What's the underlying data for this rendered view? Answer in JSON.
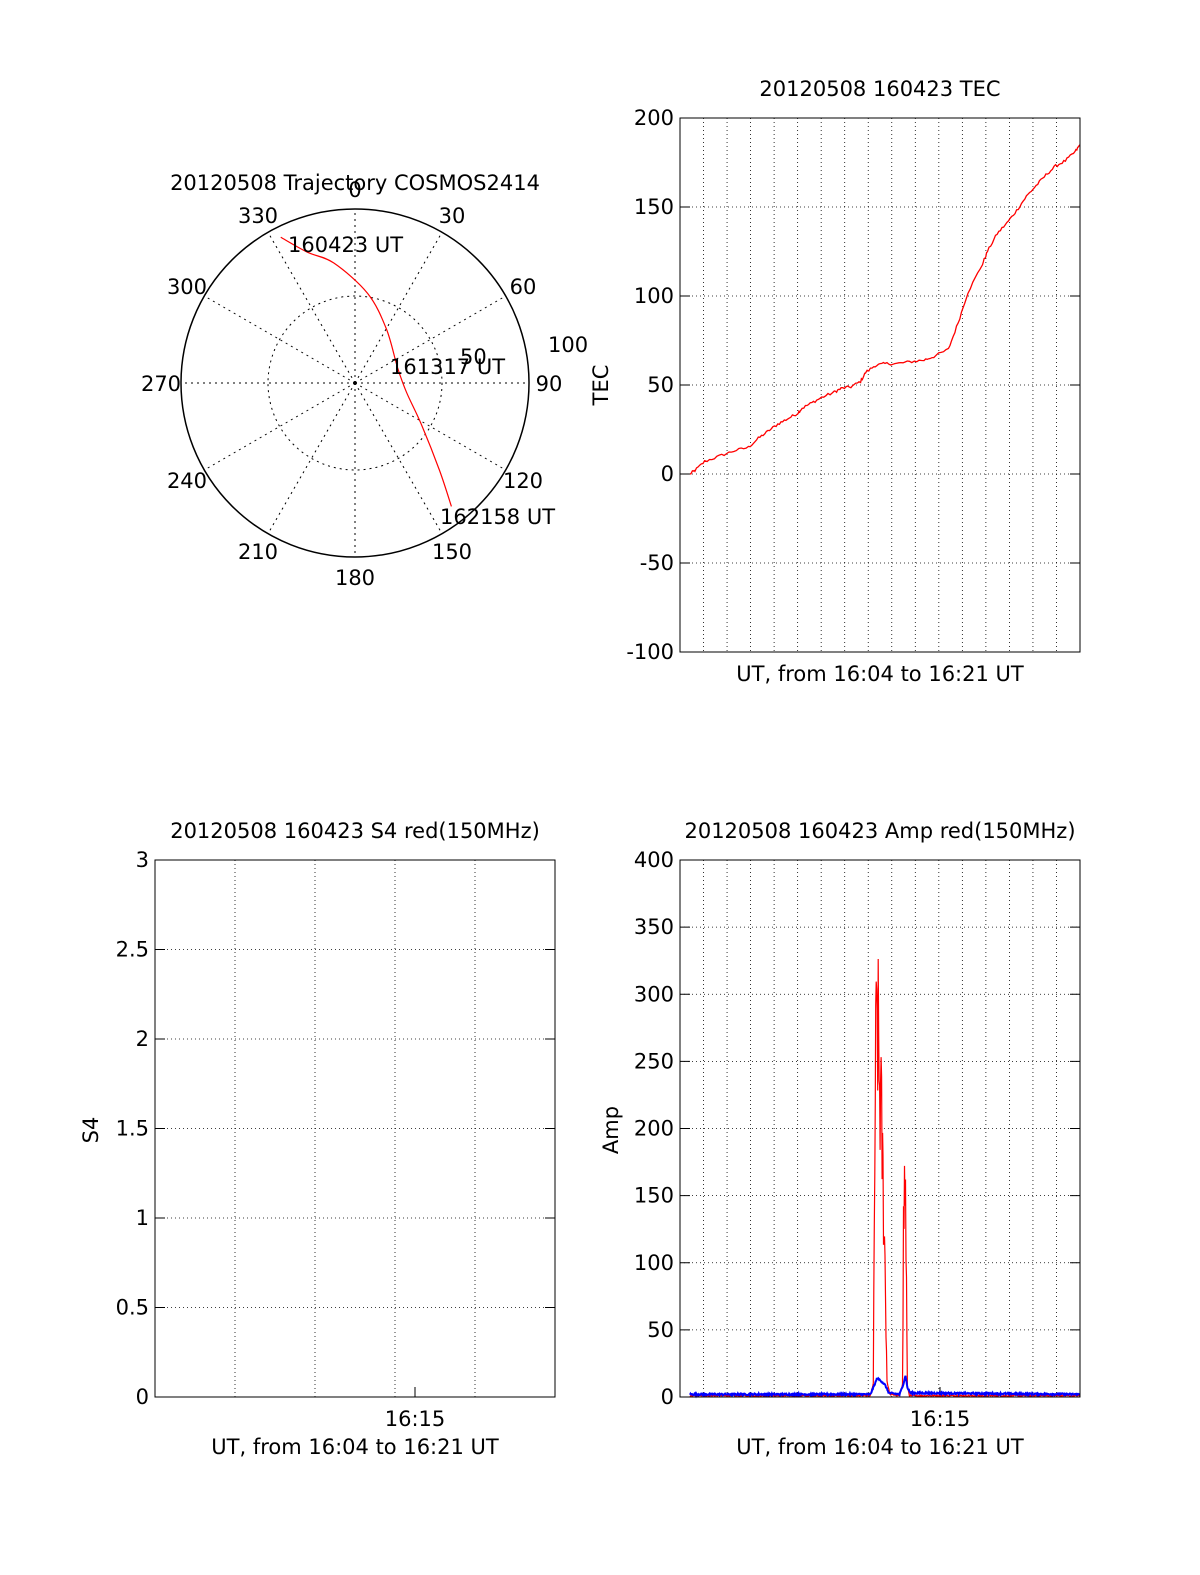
{
  "chart_data": [
    {
      "type": "polar",
      "title": "20120508 Trajectory COSMOS2414",
      "azimuth_labels": [
        "0",
        "30",
        "60",
        "90",
        "120",
        "150",
        "180",
        "210",
        "240",
        "270",
        "300",
        "330"
      ],
      "elevation_ring_labels": [
        "50",
        "100"
      ],
      "trajectory": {
        "color": "#ff0000",
        "points": [
          {
            "az": 333,
            "r": 94
          },
          {
            "az": 340,
            "r": 80
          },
          {
            "az": 350,
            "r": 70
          },
          {
            "az": 8,
            "r": 52
          },
          {
            "az": 30,
            "r": 36
          },
          {
            "az": 70,
            "r": 26
          },
          {
            "az": 100,
            "r": 30
          },
          {
            "az": 122,
            "r": 45
          },
          {
            "az": 136,
            "r": 70
          },
          {
            "az": 142,
            "r": 90
          }
        ]
      },
      "annotations": [
        "160423 UT",
        "161317 UT",
        "162158 UT"
      ]
    },
    {
      "type": "line",
      "title": "20120508 160423 TEC",
      "xlabel": "UT, from 16:04 to 16:21 UT",
      "ylabel": "TEC",
      "ylim": [
        -100,
        200
      ],
      "yticks": [
        "-100",
        "-50",
        "0",
        "50",
        "100",
        "150",
        "200"
      ],
      "grid": true,
      "series": [
        {
          "color": "#ff0000",
          "x": [
            0,
            5,
            15,
            30,
            45,
            60,
            70,
            80,
            90,
            100,
            110,
            115,
            125,
            135,
            148,
            155,
            165,
            175,
            180,
            190,
            200,
            212,
            225,
            240,
            250,
            265,
            275,
            285,
            300,
            305,
            315,
            325,
            335,
            345,
            355,
            365,
            375,
            385,
            395,
            400
          ],
          "y": [
            0,
            2,
            7,
            10,
            13,
            15,
            20,
            24,
            28,
            31,
            34,
            37,
            40,
            43,
            46,
            48,
            49,
            52,
            57,
            61,
            62,
            62,
            63,
            64,
            66,
            70,
            85,
            102,
            118,
            125,
            135,
            141,
            148,
            156,
            162,
            168,
            173,
            176,
            181,
            185
          ]
        }
      ]
    },
    {
      "type": "line",
      "title": "20120508 160423 S4 red(150MHz)",
      "xlabel": "UT, from 16:04 to 16:21 UT",
      "ylabel": "S4",
      "ylim": [
        0,
        3
      ],
      "yticks": [
        "0",
        "0.5",
        "1",
        "1.5",
        "2",
        "2.5",
        "3"
      ],
      "xticks": [
        "16:15"
      ],
      "grid": true,
      "series": [
        {
          "color": "#0000ff",
          "description_noise": true
        },
        {
          "color": "#ff0000",
          "description_noise": true
        }
      ]
    },
    {
      "type": "line",
      "title": "20120508 160423 Amp red(150MHz)",
      "xlabel": "UT, from 16:04 to 16:21 UT",
      "ylabel": "Amp",
      "ylim": [
        0,
        400
      ],
      "yticks": [
        "0",
        "50",
        "100",
        "150",
        "200",
        "250",
        "300",
        "350",
        "400"
      ],
      "xticks": [
        "16:15"
      ],
      "grid": true,
      "series": [
        {
          "color": "#ff0000",
          "x": [
            0,
            185,
            188,
            190,
            192,
            194,
            196,
            198,
            200,
            202,
            205,
            215,
            218,
            219,
            220,
            221,
            222,
            223,
            225,
            400
          ],
          "y": [
            1,
            1,
            10,
            230,
            286,
            240,
            210,
            160,
            100,
            12,
            2,
            1,
            10,
            124,
            155,
            150,
            80,
            8,
            1,
            1
          ]
        },
        {
          "color": "#0000ff",
          "x": [
            0,
            185,
            188,
            192,
            196,
            200,
            204,
            215,
            219,
            221,
            223,
            226,
            400
          ],
          "y": [
            2,
            2,
            7,
            14,
            12,
            9,
            3,
            2,
            10,
            16,
            7,
            3,
            2
          ]
        }
      ]
    }
  ]
}
